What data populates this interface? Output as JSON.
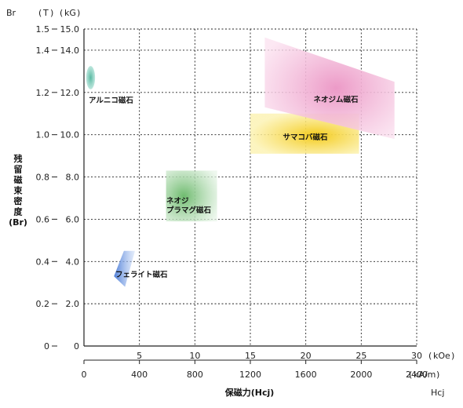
{
  "chart_data": {
    "type": "region",
    "x_unit_top": "kOe",
    "x_unit_bottom": "kA/m",
    "y_unit_left": "T",
    "y_unit_right": "kG",
    "x_axis_code": "Hcj",
    "y_axis_code": "Br",
    "xlabel": "保磁力(Hcj)",
    "ylabel_lines": [
      "残",
      "留",
      "磁",
      "束",
      "密",
      "度",
      "(Br)"
    ],
    "xlim_kOe": [
      0,
      30
    ],
    "ylim_T": [
      0,
      1.5
    ],
    "x_ticks_top": [
      "5",
      "10",
      "15",
      "20",
      "25",
      "30"
    ],
    "x_ticks_bottom": [
      "0",
      "400",
      "800",
      "1200",
      "1600",
      "2000",
      "2400"
    ],
    "y_ticks_left": [
      "0",
      "0.2",
      "0.4",
      "0.6",
      "0.8",
      "1.0",
      "1.2",
      "1.4",
      "1.5"
    ],
    "y_ticks_right": [
      "0",
      "2.0",
      "4.0",
      "6.0",
      "8.0",
      "10.0",
      "12.0",
      "14.0",
      "15.0"
    ],
    "grid": true,
    "regions": [
      {
        "name": "アルニコ磁石",
        "label_lines": [
          "アルニコ磁石"
        ],
        "shape": "ellipse",
        "cx_kOe": 0.6,
        "cy_T": 1.27,
        "rx_kOe": 0.4,
        "ry_T": 0.055,
        "color": "#5fbfa8"
      },
      {
        "name": "フェライト磁石",
        "label_lines": [
          "フェライト磁石"
        ],
        "shape": "polygon",
        "points_kOe_T": [
          [
            2.7,
            0.33
          ],
          [
            3.6,
            0.45
          ],
          [
            4.6,
            0.45
          ],
          [
            3.7,
            0.28
          ]
        ],
        "color": "#7fa6e6"
      },
      {
        "name": "ネオジプラマグ磁石",
        "label_lines": [
          "ネオジ",
          "プラマグ磁石"
        ],
        "shape": "rect",
        "x_range_kOe": [
          7.4,
          12.0
        ],
        "y_range_T": [
          0.59,
          0.83
        ],
        "color": "#8ecb8e"
      },
      {
        "name": "サマコバ磁石",
        "label_lines": [
          "サマコバ磁石"
        ],
        "shape": "rect",
        "x_range_kOe": [
          15.0,
          24.8
        ],
        "y_range_T": [
          0.91,
          1.1
        ],
        "color": "#f7d640"
      },
      {
        "name": "ネオジム磁石",
        "label_lines": [
          "ネオジム磁石"
        ],
        "shape": "polygon",
        "points_kOe_T": [
          [
            16.3,
            1.46
          ],
          [
            28.0,
            1.25
          ],
          [
            28.0,
            0.98
          ],
          [
            16.3,
            1.13
          ]
        ],
        "color": "#f0a8cf"
      }
    ]
  }
}
